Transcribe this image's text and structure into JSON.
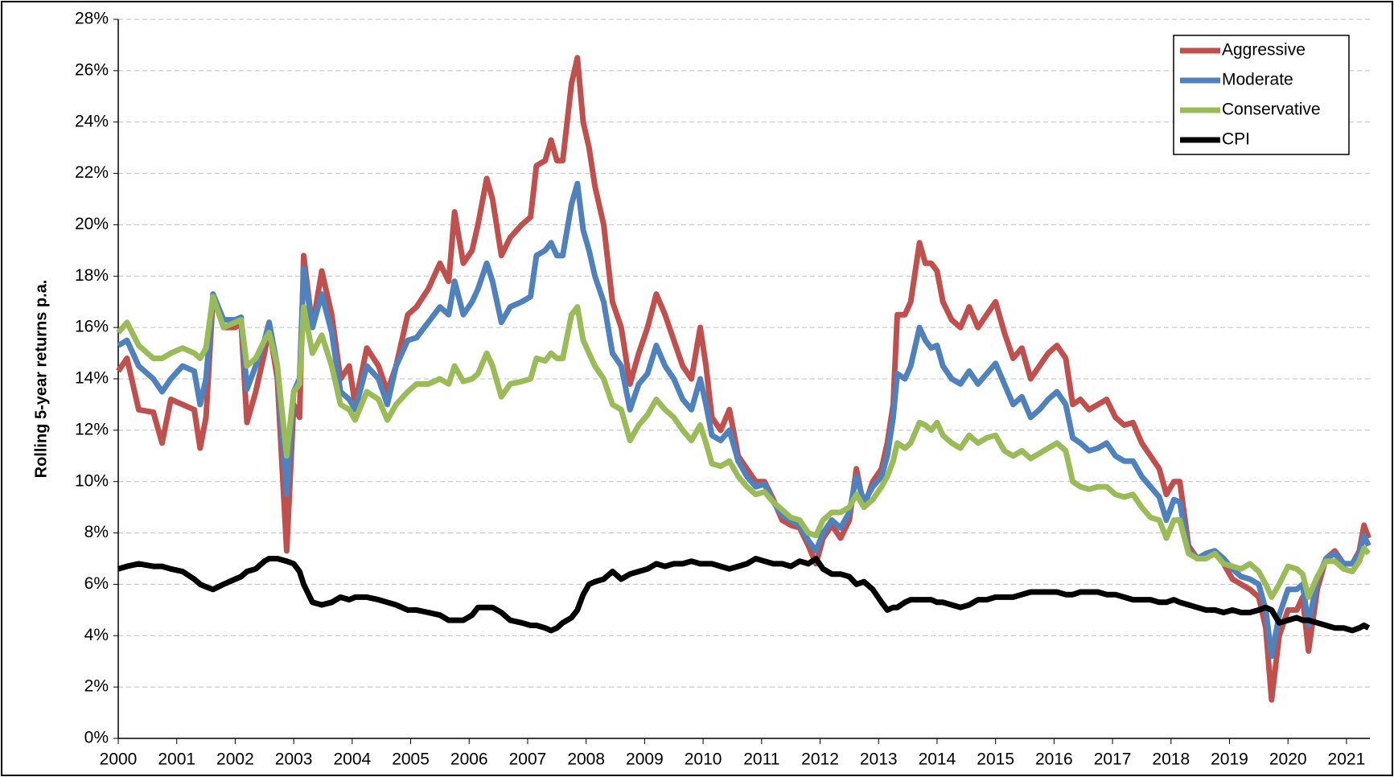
{
  "chart_data": {
    "type": "line",
    "y_label": "Rolling 5-year returns p.a.",
    "x": [
      2000.0,
      2000.15,
      2000.35,
      2000.6,
      2000.75,
      2000.9,
      2001.1,
      2001.3,
      2001.4,
      2001.5,
      2001.62,
      2001.8,
      2002.0,
      2002.1,
      2002.2,
      2002.35,
      2002.5,
      2002.58,
      2002.72,
      2002.88,
      2003.0,
      2003.1,
      2003.17,
      2003.32,
      2003.48,
      2003.65,
      2003.8,
      2003.95,
      2004.05,
      2004.25,
      2004.45,
      2004.6,
      2004.75,
      2004.95,
      2005.1,
      2005.3,
      2005.5,
      2005.65,
      2005.75,
      2005.9,
      2006.05,
      2006.15,
      2006.3,
      2006.4,
      2006.55,
      2006.7,
      2006.9,
      2007.05,
      2007.15,
      2007.3,
      2007.4,
      2007.5,
      2007.6,
      2007.75,
      2007.85,
      2007.95,
      2008.05,
      2008.15,
      2008.3,
      2008.45,
      2008.6,
      2008.75,
      2008.9,
      2009.05,
      2009.2,
      2009.35,
      2009.5,
      2009.65,
      2009.8,
      2009.95,
      2010.05,
      2010.15,
      2010.3,
      2010.45,
      2010.6,
      2010.75,
      2010.9,
      2011.05,
      2011.2,
      2011.35,
      2011.5,
      2011.65,
      2011.8,
      2011.93,
      2012.05,
      2012.2,
      2012.35,
      2012.5,
      2012.62,
      2012.75,
      2012.9,
      2013.05,
      2013.15,
      2013.25,
      2013.32,
      2013.45,
      2013.55,
      2013.7,
      2013.8,
      2013.9,
      2014.0,
      2014.1,
      2014.25,
      2014.4,
      2014.55,
      2014.7,
      2014.85,
      2015.0,
      2015.15,
      2015.3,
      2015.45,
      2015.6,
      2015.75,
      2015.9,
      2016.05,
      2016.2,
      2016.32,
      2016.45,
      2016.6,
      2016.75,
      2016.9,
      2017.05,
      2017.2,
      2017.35,
      2017.5,
      2017.65,
      2017.8,
      2017.92,
      2018.05,
      2018.15,
      2018.3,
      2018.45,
      2018.6,
      2018.75,
      2018.9,
      2019.05,
      2019.2,
      2019.35,
      2019.5,
      2019.62,
      2019.72,
      2019.85,
      2020.0,
      2020.15,
      2020.25,
      2020.35,
      2020.5,
      2020.65,
      2020.8,
      2020.95,
      2021.1,
      2021.22,
      2021.3,
      2021.38
    ],
    "series": [
      {
        "name": "Aggressive",
        "color": "#c0504d",
        "values": [
          14.3,
          14.8,
          12.8,
          12.7,
          11.5,
          13.2,
          13.0,
          12.8,
          11.3,
          12.5,
          17.2,
          16.0,
          16.0,
          16.2,
          12.3,
          13.5,
          15.0,
          16.0,
          14.0,
          7.3,
          13.0,
          12.5,
          18.8,
          16.0,
          18.2,
          16.5,
          14.0,
          14.5,
          13.0,
          15.2,
          14.5,
          13.5,
          14.5,
          16.5,
          16.8,
          17.5,
          18.5,
          17.8,
          20.5,
          18.5,
          19.0,
          20.0,
          21.8,
          21.0,
          18.8,
          19.5,
          20.0,
          20.3,
          22.3,
          22.5,
          23.3,
          22.5,
          22.5,
          25.5,
          26.5,
          24.0,
          23.0,
          21.5,
          20.0,
          17.0,
          16.0,
          13.8,
          15.0,
          16.0,
          17.3,
          16.5,
          15.5,
          14.5,
          14.0,
          16.0,
          14.5,
          12.5,
          12.0,
          12.8,
          11.0,
          10.5,
          10.0,
          10.0,
          9.3,
          8.5,
          8.3,
          8.2,
          7.5,
          6.8,
          7.8,
          8.3,
          7.8,
          8.5,
          10.5,
          9.0,
          10.0,
          10.5,
          11.5,
          13.0,
          16.5,
          16.5,
          17.0,
          19.3,
          18.5,
          18.5,
          18.2,
          17.0,
          16.3,
          16.0,
          16.8,
          16.0,
          16.5,
          17.0,
          15.8,
          14.8,
          15.2,
          14.0,
          14.5,
          15.0,
          15.3,
          14.8,
          13.0,
          13.2,
          12.8,
          13.0,
          13.2,
          12.5,
          12.2,
          12.3,
          11.5,
          11.0,
          10.5,
          9.5,
          10.0,
          10.0,
          7.5,
          7.0,
          7.2,
          7.3,
          6.8,
          6.2,
          6.0,
          5.8,
          5.5,
          4.3,
          1.5,
          4.0,
          5.0,
          5.0,
          5.5,
          3.4,
          5.8,
          7.0,
          7.3,
          6.8,
          6.8,
          7.3,
          8.3,
          7.8
        ]
      },
      {
        "name": "Moderate",
        "color": "#4f81bd",
        "values": [
          15.3,
          15.5,
          14.5,
          14.0,
          13.5,
          14.0,
          14.5,
          14.3,
          13.0,
          14.0,
          17.3,
          16.3,
          16.3,
          16.4,
          13.6,
          14.5,
          15.5,
          16.2,
          14.5,
          9.5,
          13.5,
          14.0,
          18.3,
          16.0,
          17.3,
          15.8,
          13.5,
          13.2,
          12.8,
          14.5,
          14.0,
          13.0,
          14.5,
          15.5,
          15.6,
          16.2,
          16.8,
          16.5,
          17.8,
          16.5,
          17.0,
          17.5,
          18.5,
          17.8,
          16.2,
          16.8,
          17.0,
          17.2,
          18.8,
          19.0,
          19.3,
          18.8,
          18.8,
          20.8,
          21.6,
          19.8,
          19.0,
          18.0,
          17.0,
          15.0,
          14.5,
          12.8,
          13.8,
          14.2,
          15.3,
          14.5,
          14.0,
          13.2,
          12.8,
          14.0,
          13.0,
          11.8,
          11.6,
          12.0,
          10.8,
          10.2,
          9.8,
          9.9,
          9.2,
          8.7,
          8.5,
          8.3,
          7.7,
          7.3,
          8.0,
          8.5,
          8.2,
          8.8,
          10.2,
          9.2,
          9.8,
          10.2,
          11.0,
          12.5,
          14.2,
          14.0,
          14.5,
          16.0,
          15.5,
          15.2,
          15.3,
          14.5,
          14.0,
          13.8,
          14.3,
          13.8,
          14.2,
          14.6,
          13.8,
          13.0,
          13.3,
          12.5,
          12.8,
          13.2,
          13.5,
          13.0,
          11.7,
          11.5,
          11.2,
          11.3,
          11.5,
          11.0,
          10.8,
          10.8,
          10.2,
          9.8,
          9.4,
          8.5,
          9.3,
          9.2,
          7.3,
          7.0,
          7.2,
          7.3,
          7.0,
          6.6,
          6.3,
          6.2,
          6.0,
          5.0,
          3.2,
          4.8,
          5.8,
          5.8,
          6.0,
          4.4,
          6.2,
          7.0,
          7.2,
          6.8,
          6.8,
          7.2,
          7.9,
          7.5
        ]
      },
      {
        "name": "Conservative",
        "color": "#9bbb59",
        "values": [
          15.8,
          16.2,
          15.3,
          14.8,
          14.8,
          15.0,
          15.2,
          15.0,
          14.8,
          15.2,
          17.2,
          16.0,
          16.2,
          16.3,
          14.5,
          14.8,
          15.5,
          15.8,
          14.5,
          11.0,
          13.5,
          13.8,
          16.8,
          15.0,
          15.7,
          14.5,
          13.0,
          12.8,
          12.4,
          13.5,
          13.2,
          12.4,
          13.0,
          13.5,
          13.8,
          13.8,
          14.0,
          13.8,
          14.5,
          13.9,
          14.0,
          14.2,
          15.0,
          14.5,
          13.3,
          13.8,
          13.9,
          14.0,
          14.8,
          14.7,
          15.0,
          14.8,
          14.8,
          16.5,
          16.8,
          15.5,
          15.0,
          14.5,
          14.0,
          13.0,
          12.8,
          11.6,
          12.2,
          12.6,
          13.2,
          12.8,
          12.5,
          12.0,
          11.6,
          12.2,
          11.5,
          10.7,
          10.6,
          10.8,
          10.2,
          9.8,
          9.5,
          9.6,
          9.2,
          8.9,
          8.6,
          8.5,
          8.0,
          7.9,
          8.5,
          8.8,
          8.8,
          9.0,
          9.5,
          9.0,
          9.3,
          9.8,
          10.2,
          10.8,
          11.5,
          11.3,
          11.5,
          12.3,
          12.2,
          12.0,
          12.3,
          11.8,
          11.5,
          11.3,
          11.8,
          11.5,
          11.7,
          11.8,
          11.2,
          11.0,
          11.2,
          10.9,
          11.1,
          11.3,
          11.5,
          11.2,
          10.0,
          9.8,
          9.7,
          9.8,
          9.8,
          9.5,
          9.4,
          9.5,
          9.0,
          8.6,
          8.5,
          7.8,
          8.5,
          8.5,
          7.2,
          7.0,
          7.0,
          7.2,
          6.8,
          6.7,
          6.6,
          6.8,
          6.5,
          6.0,
          5.5,
          6.0,
          6.7,
          6.6,
          6.4,
          5.5,
          6.3,
          6.9,
          6.9,
          6.6,
          6.5,
          6.9,
          7.4,
          7.2
        ]
      },
      {
        "name": "CPI",
        "color": "#000000",
        "values": [
          6.6,
          6.7,
          6.8,
          6.7,
          6.7,
          6.6,
          6.5,
          6.2,
          6.0,
          5.9,
          5.8,
          6.0,
          6.2,
          6.3,
          6.5,
          6.6,
          6.9,
          7.0,
          7.0,
          6.9,
          6.8,
          6.5,
          6.0,
          5.3,
          5.2,
          5.3,
          5.5,
          5.4,
          5.5,
          5.5,
          5.4,
          5.3,
          5.2,
          5.0,
          5.0,
          4.9,
          4.8,
          4.6,
          4.6,
          4.6,
          4.8,
          5.1,
          5.1,
          5.1,
          4.9,
          4.6,
          4.5,
          4.4,
          4.4,
          4.3,
          4.2,
          4.3,
          4.5,
          4.7,
          5.0,
          5.6,
          6.0,
          6.1,
          6.2,
          6.5,
          6.2,
          6.4,
          6.5,
          6.6,
          6.8,
          6.7,
          6.8,
          6.8,
          6.9,
          6.8,
          6.8,
          6.8,
          6.7,
          6.6,
          6.7,
          6.8,
          7.0,
          6.9,
          6.8,
          6.8,
          6.7,
          6.9,
          6.8,
          7.0,
          6.6,
          6.4,
          6.4,
          6.3,
          6.0,
          6.1,
          5.8,
          5.3,
          5.0,
          5.1,
          5.1,
          5.3,
          5.4,
          5.4,
          5.4,
          5.4,
          5.3,
          5.3,
          5.2,
          5.1,
          5.2,
          5.4,
          5.4,
          5.5,
          5.5,
          5.5,
          5.6,
          5.7,
          5.7,
          5.7,
          5.7,
          5.6,
          5.6,
          5.7,
          5.7,
          5.7,
          5.6,
          5.6,
          5.5,
          5.4,
          5.4,
          5.4,
          5.3,
          5.3,
          5.4,
          5.3,
          5.2,
          5.1,
          5.0,
          5.0,
          4.9,
          5.0,
          4.9,
          4.9,
          5.0,
          5.1,
          5.0,
          4.5,
          4.6,
          4.7,
          4.6,
          4.6,
          4.5,
          4.4,
          4.3,
          4.3,
          4.2,
          4.3,
          4.4,
          4.3
        ]
      }
    ],
    "xlim": [
      2000,
      2021.4
    ],
    "xticks": [
      2000,
      2001,
      2002,
      2003,
      2004,
      2005,
      2006,
      2007,
      2008,
      2009,
      2010,
      2011,
      2012,
      2013,
      2014,
      2015,
      2016,
      2017,
      2018,
      2019,
      2020,
      2021
    ],
    "ylim": [
      0,
      28
    ],
    "yticks": [
      {
        "value": 0,
        "label": "0%"
      },
      {
        "value": 2,
        "label": "2%"
      },
      {
        "value": 4,
        "label": "4%"
      },
      {
        "value": 6,
        "label": "6%"
      },
      {
        "value": 8,
        "label": "8%"
      },
      {
        "value": 10,
        "label": "10%"
      },
      {
        "value": 12,
        "label": "12%"
      },
      {
        "value": 14,
        "label": "14%"
      },
      {
        "value": 16,
        "label": "16%"
      },
      {
        "value": 18,
        "label": "18%"
      },
      {
        "value": 20,
        "label": "20%"
      },
      {
        "value": 22,
        "label": "22%"
      },
      {
        "value": 24,
        "label": "24%"
      },
      {
        "value": 26,
        "label": "26%"
      },
      {
        "value": 28,
        "label": "28%"
      }
    ],
    "grid": true,
    "legend": "upper right"
  }
}
